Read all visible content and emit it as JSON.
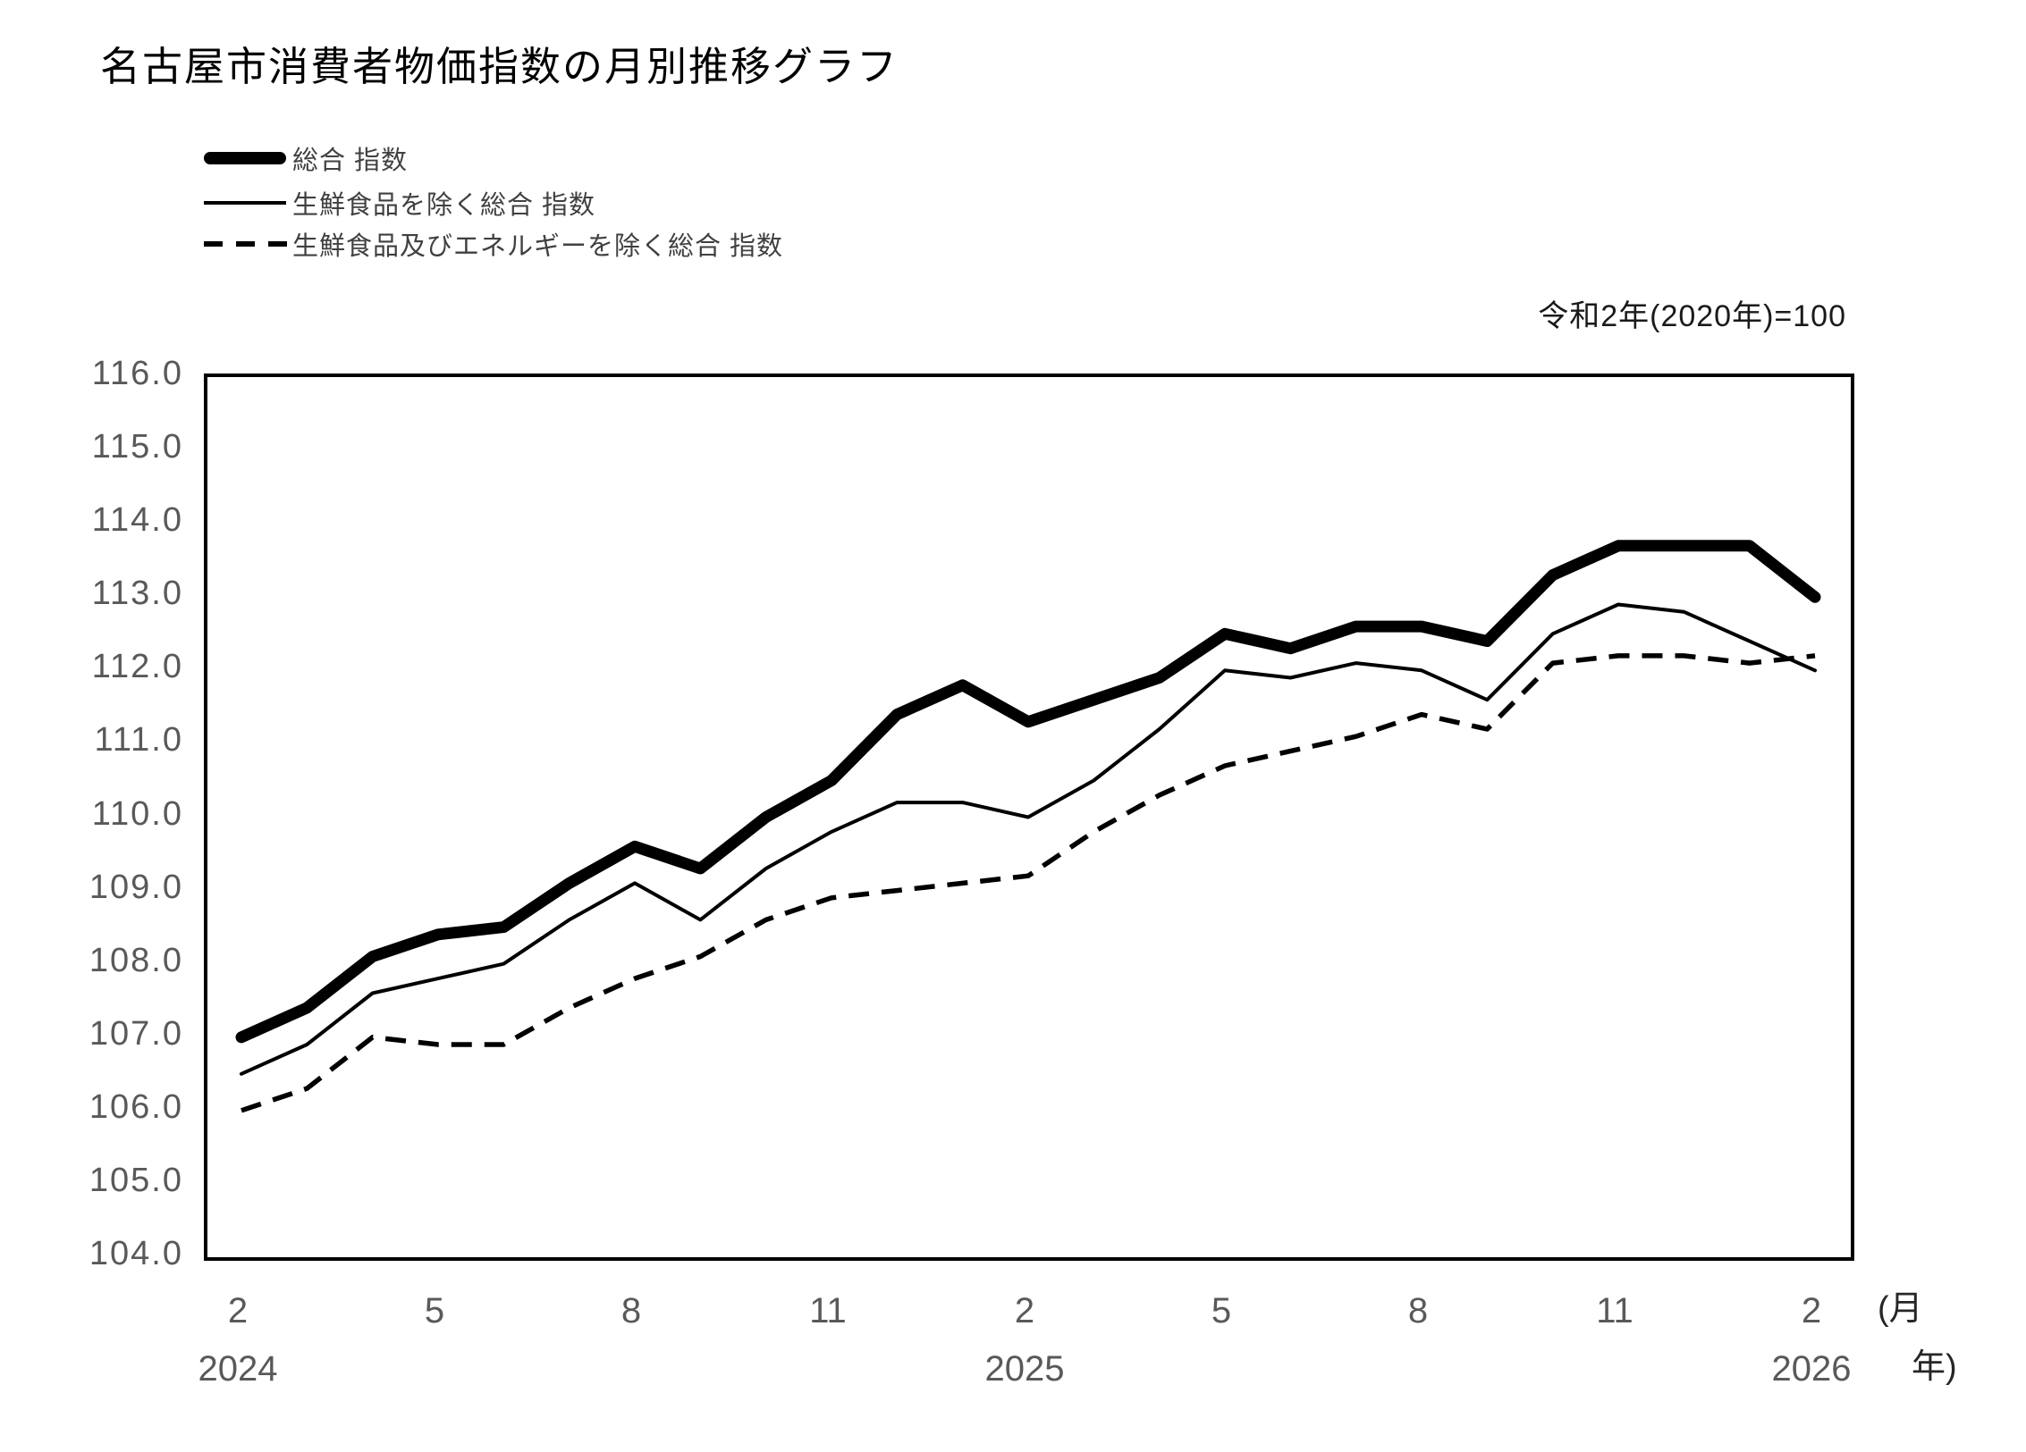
{
  "title": "名古屋市消費者物価指数の月別推移グラフ",
  "base_note": "令和2年(2020年)=100",
  "axis_unit": {
    "line1": "(月",
    "line2": "年)"
  },
  "legend": {
    "items": [
      {
        "label": "総合 指数",
        "style": "thick"
      },
      {
        "label": "生鮮食品を除く総合 指数",
        "style": "thin"
      },
      {
        "label": "生鮮食品及びエネルギーを除く総合 指数",
        "style": "dashed"
      }
    ]
  },
  "chart_data": {
    "type": "line",
    "title": "名古屋市消費者物価指数の月別推移グラフ",
    "unit_note": "令和2年(2020年)=100",
    "grid": false,
    "line_color": "#000000",
    "ylim": [
      104.0,
      116.0
    ],
    "ytick_step": 1.0,
    "months": [
      "2024-02",
      "2024-03",
      "2024-04",
      "2024-05",
      "2024-06",
      "2024-07",
      "2024-08",
      "2024-09",
      "2024-10",
      "2024-11",
      "2024-12",
      "2025-01",
      "2025-02",
      "2025-03",
      "2025-04",
      "2025-05",
      "2025-06",
      "2025-07",
      "2025-08",
      "2025-09",
      "2025-10",
      "2025-11",
      "2025-12",
      "2026-01",
      "2026-02"
    ],
    "x_tick_labels": [
      {
        "k": 0,
        "label": "2"
      },
      {
        "k": 3,
        "label": "5"
      },
      {
        "k": 6,
        "label": "8"
      },
      {
        "k": 9,
        "label": "11"
      },
      {
        "k": 12,
        "label": "2"
      },
      {
        "k": 15,
        "label": "5"
      },
      {
        "k": 18,
        "label": "8"
      },
      {
        "k": 21,
        "label": "11"
      },
      {
        "k": 24,
        "label": "2"
      }
    ],
    "year_labels": [
      {
        "k": 0,
        "label": "2024"
      },
      {
        "k": 12,
        "label": "2025"
      },
      {
        "k": 24,
        "label": "2026"
      }
    ],
    "series": [
      {
        "name": "総合 指数",
        "style": "thick",
        "values": [
          107.0,
          107.4,
          108.1,
          108.4,
          108.5,
          109.1,
          109.6,
          109.3,
          110.0,
          110.5,
          111.4,
          111.8,
          111.3,
          111.6,
          111.9,
          112.5,
          112.3,
          112.6,
          112.6,
          112.4,
          113.3,
          113.7,
          113.7,
          113.7,
          113.0
        ]
      },
      {
        "name": "生鮮食品を除く総合 指数",
        "style": "thin",
        "values": [
          106.5,
          106.9,
          107.6,
          107.8,
          108.0,
          108.6,
          109.1,
          108.6,
          109.3,
          109.8,
          110.2,
          110.2,
          110.0,
          110.5,
          111.2,
          112.0,
          111.9,
          112.1,
          112.0,
          111.6,
          112.5,
          112.9,
          112.8,
          112.4,
          112.0
        ]
      },
      {
        "name": "生鮮食品及びエネルギーを除く総合 指数",
        "style": "dashed",
        "values": [
          106.0,
          106.3,
          107.0,
          106.9,
          106.9,
          107.4,
          107.8,
          108.1,
          108.6,
          108.9,
          109.0,
          109.1,
          109.2,
          109.8,
          110.3,
          110.7,
          110.9,
          111.1,
          111.4,
          111.2,
          112.1,
          112.2,
          112.2,
          112.1,
          112.2
        ]
      }
    ]
  }
}
